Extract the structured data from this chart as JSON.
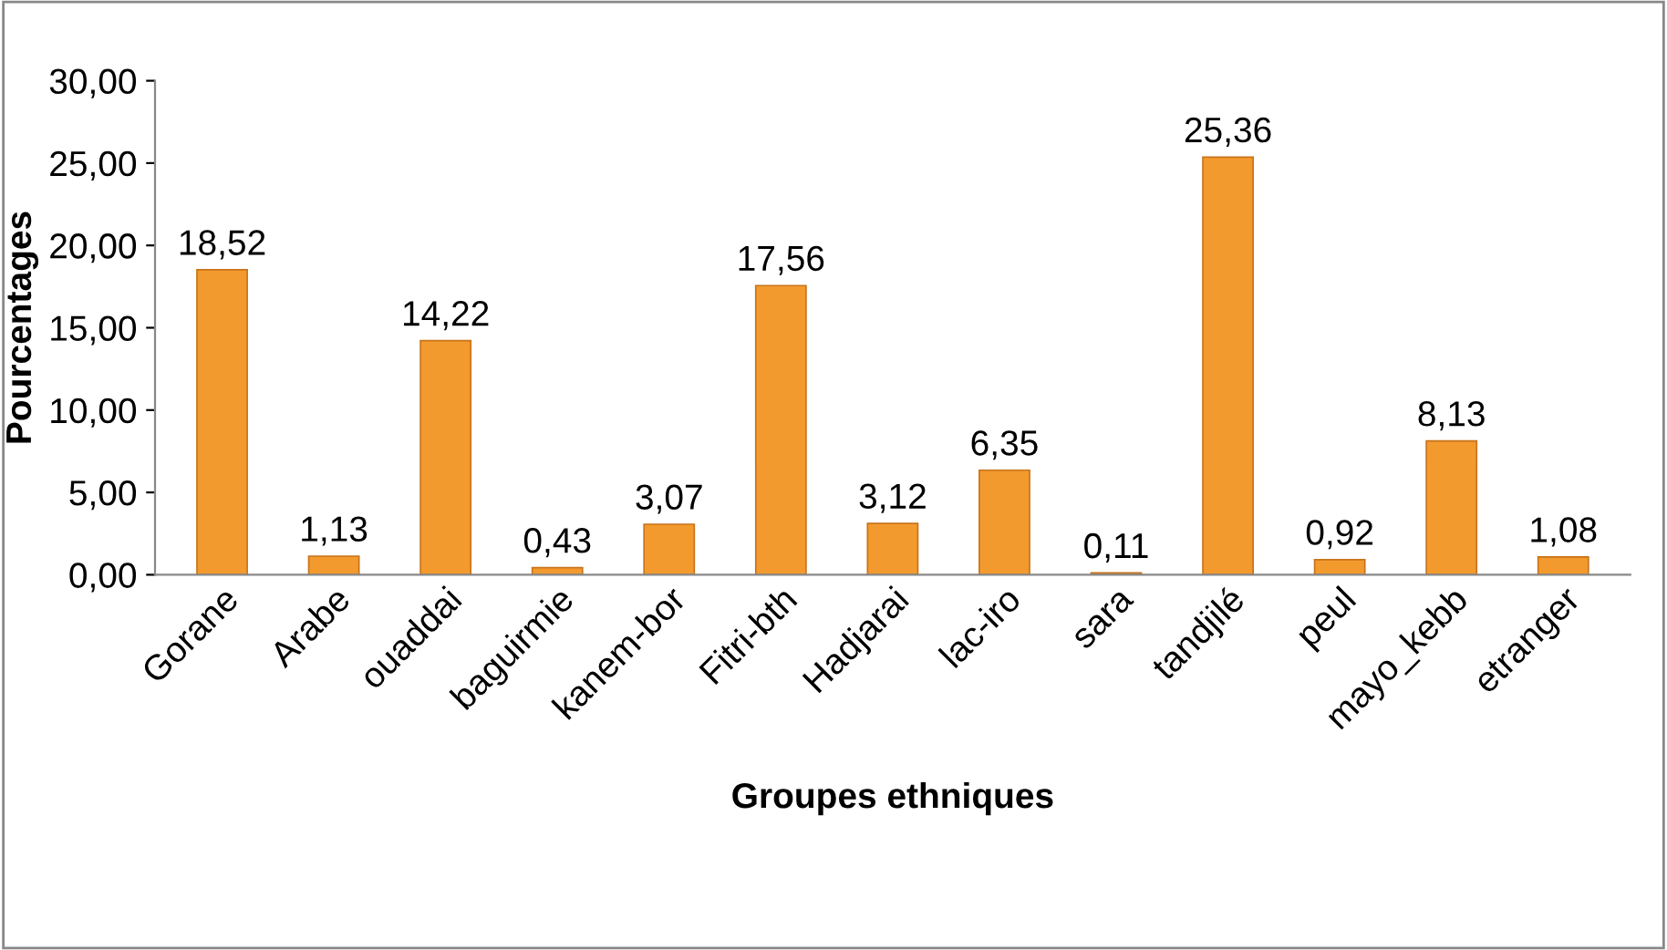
{
  "chart_data": {
    "type": "bar",
    "xlabel": "Groupes ethniques",
    "ylabel": "Pourcentages",
    "categories": [
      "Gorane",
      "Arabe",
      "ouaddai",
      "baguirmie",
      "kanem-bor",
      "Fitri-bth",
      "Hadjarai",
      "lac-iro",
      "sara",
      "tandjilé",
      "peul",
      "mayo_kebb",
      "etranger"
    ],
    "values": [
      18.52,
      1.13,
      14.22,
      0.43,
      3.07,
      17.56,
      3.12,
      6.35,
      0.11,
      25.36,
      0.92,
      8.13,
      1.08
    ],
    "value_labels": [
      "18,52",
      "1,13",
      "14,22",
      "0,43",
      "3,07",
      "17,56",
      "3,12",
      "6,35",
      "0,11",
      "25,36",
      "0,92",
      "8,13",
      "1,08"
    ],
    "color": "#f39a2e",
    "ylim": [
      0,
      30
    ],
    "yticks": [
      {
        "value": 0,
        "label": "0,00"
      },
      {
        "value": 5,
        "label": "5,00"
      },
      {
        "value": 10,
        "label": "10,00"
      },
      {
        "value": 15,
        "label": "15,00"
      },
      {
        "value": 20,
        "label": "20,00"
      },
      {
        "value": 25,
        "label": "25,00"
      },
      {
        "value": 30,
        "label": "30,00"
      }
    ],
    "grid": false,
    "legend": false
  }
}
